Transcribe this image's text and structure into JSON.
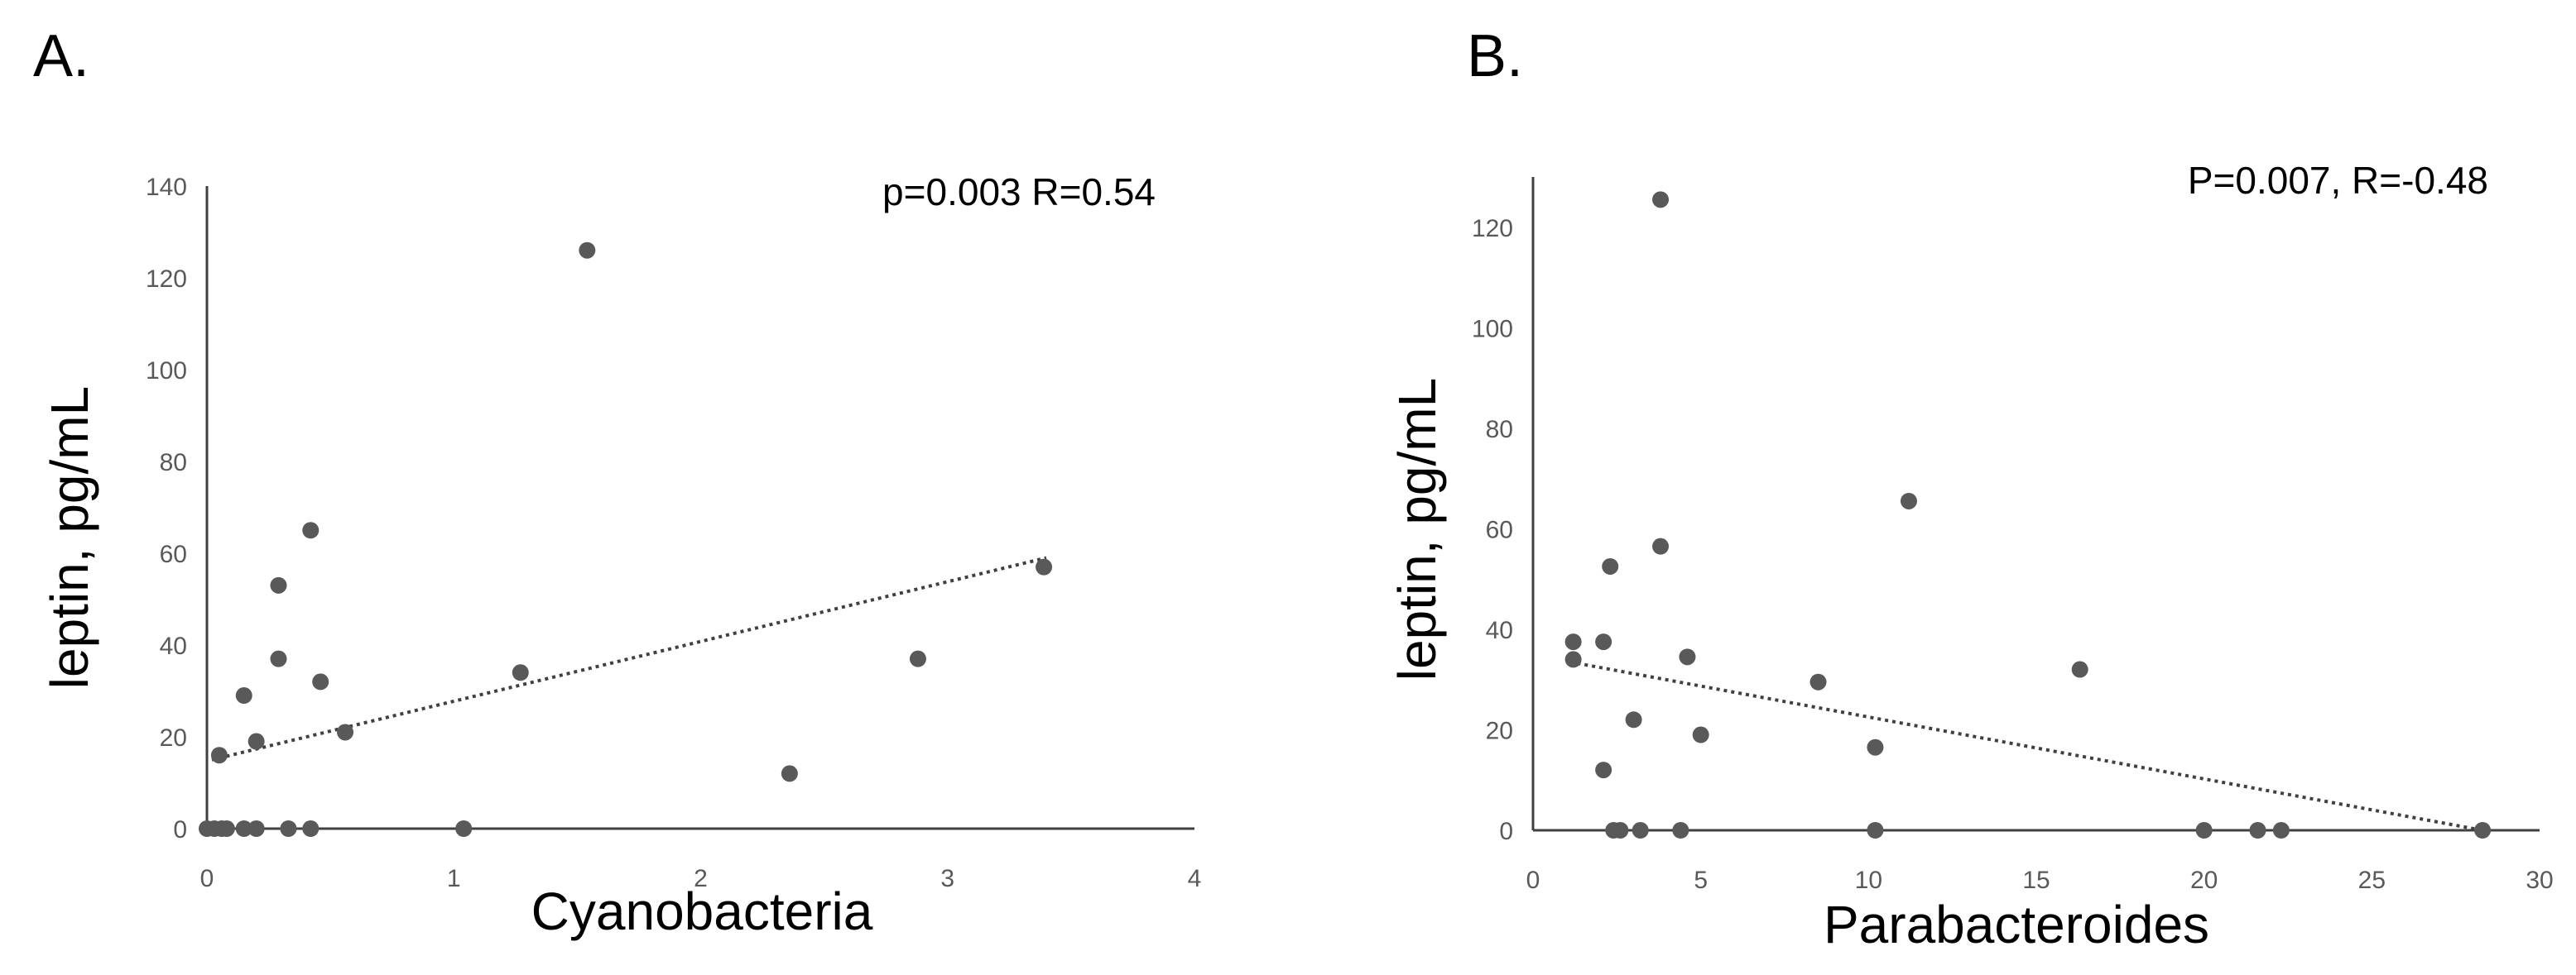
{
  "colors": {
    "point": "#595959",
    "axis": "#404040",
    "text": "#000000"
  },
  "chart_data": [
    {
      "type": "scatter",
      "panel_label": "A.",
      "annotation": "p=0.003 R=0.54",
      "xlabel": "Cyanobacteria",
      "ylabel": "leptin,  pg/mL",
      "xlim": [
        0,
        4
      ],
      "ylim": [
        0,
        140
      ],
      "xticks": [
        0,
        1,
        2,
        3,
        4
      ],
      "yticks": [
        0,
        20,
        40,
        60,
        80,
        100,
        120,
        140
      ],
      "trendline": {
        "x0": 0.02,
        "y0": 15,
        "x1": 3.4,
        "y1": 59
      },
      "points": [
        [
          0.0,
          0
        ],
        [
          0.03,
          0
        ],
        [
          0.06,
          0
        ],
        [
          0.08,
          0
        ],
        [
          0.15,
          0
        ],
        [
          0.2,
          0
        ],
        [
          0.33,
          0
        ],
        [
          0.42,
          0
        ],
        [
          1.04,
          0
        ],
        [
          0.05,
          16
        ],
        [
          0.2,
          19
        ],
        [
          0.56,
          21
        ],
        [
          0.15,
          29
        ],
        [
          0.46,
          32
        ],
        [
          1.27,
          34
        ],
        [
          0.29,
          37
        ],
        [
          0.29,
          53
        ],
        [
          0.42,
          65
        ],
        [
          1.54,
          126
        ],
        [
          2.36,
          12
        ],
        [
          2.88,
          37
        ],
        [
          3.39,
          57
        ]
      ]
    },
    {
      "type": "scatter",
      "panel_label": "B.",
      "annotation": "P=0.007, R=-0.48",
      "xlabel": "Parabacteroides",
      "ylabel": "leptin,  pg/mL",
      "xlim": [
        0,
        30
      ],
      "ylim": [
        0,
        130
      ],
      "xticks": [
        0,
        5,
        10,
        15,
        20,
        25,
        30
      ],
      "yticks": [
        0,
        20,
        40,
        60,
        80,
        100,
        120
      ],
      "trendline": {
        "x0": 1.1,
        "y0": 33.5,
        "x1": 28.3,
        "y1": 0
      },
      "points": [
        [
          2.4,
          0
        ],
        [
          2.6,
          0
        ],
        [
          3.2,
          0
        ],
        [
          4.4,
          0
        ],
        [
          10.2,
          0
        ],
        [
          20.0,
          0
        ],
        [
          21.6,
          0
        ],
        [
          22.3,
          0
        ],
        [
          28.3,
          0
        ],
        [
          2.1,
          12
        ],
        [
          3.0,
          22
        ],
        [
          5.0,
          19
        ],
        [
          10.2,
          16.5
        ],
        [
          8.5,
          29.5
        ],
        [
          4.6,
          34.5
        ],
        [
          1.2,
          34
        ],
        [
          1.2,
          37.5
        ],
        [
          2.1,
          37.5
        ],
        [
          2.3,
          52.5
        ],
        [
          3.8,
          56.5
        ],
        [
          11.2,
          65.5
        ],
        [
          16.3,
          32
        ],
        [
          3.8,
          125.5
        ]
      ]
    }
  ]
}
